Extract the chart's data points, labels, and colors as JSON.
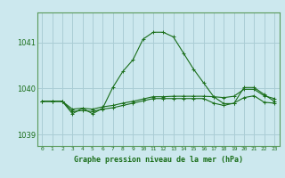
{
  "title": "Graphe pression niveau de la mer (hPa)",
  "background_color": "#cce8ee",
  "grid_color": "#aacdd5",
  "line_color": "#1a6e1a",
  "border_color": "#5a9a5a",
  "xlim": [
    -0.5,
    23.5
  ],
  "ylim": [
    1038.75,
    1041.65
  ],
  "yticks": [
    1039,
    1040,
    1041
  ],
  "xticks": [
    0,
    1,
    2,
    3,
    4,
    5,
    6,
    7,
    8,
    9,
    10,
    11,
    12,
    13,
    14,
    15,
    16,
    17,
    18,
    19,
    20,
    21,
    22,
    23
  ],
  "series": [
    [
      1039.72,
      1039.72,
      1039.72,
      1039.55,
      1039.57,
      1039.55,
      1039.6,
      1039.63,
      1039.68,
      1039.72,
      1039.77,
      1039.82,
      1039.82,
      1039.83,
      1039.83,
      1039.83,
      1039.83,
      1039.82,
      1039.8,
      1039.83,
      1039.98,
      1039.98,
      1039.84,
      1039.78
    ],
    [
      1039.72,
      1039.72,
      1039.72,
      1039.5,
      1039.52,
      1039.5,
      1039.55,
      1039.58,
      1039.63,
      1039.68,
      1039.73,
      1039.78,
      1039.78,
      1039.78,
      1039.78,
      1039.78,
      1039.78,
      1039.68,
      1039.63,
      1039.68,
      1039.8,
      1039.84,
      1039.7,
      1039.68
    ],
    [
      1039.72,
      1039.72,
      1039.72,
      1039.45,
      1039.57,
      1039.45,
      1039.57,
      1040.02,
      1040.37,
      1040.62,
      1041.07,
      1041.22,
      1041.22,
      1041.12,
      1040.77,
      1040.42,
      1040.12,
      1039.82,
      1039.67,
      1039.67,
      1040.02,
      1040.02,
      1039.87,
      1039.72
    ]
  ]
}
